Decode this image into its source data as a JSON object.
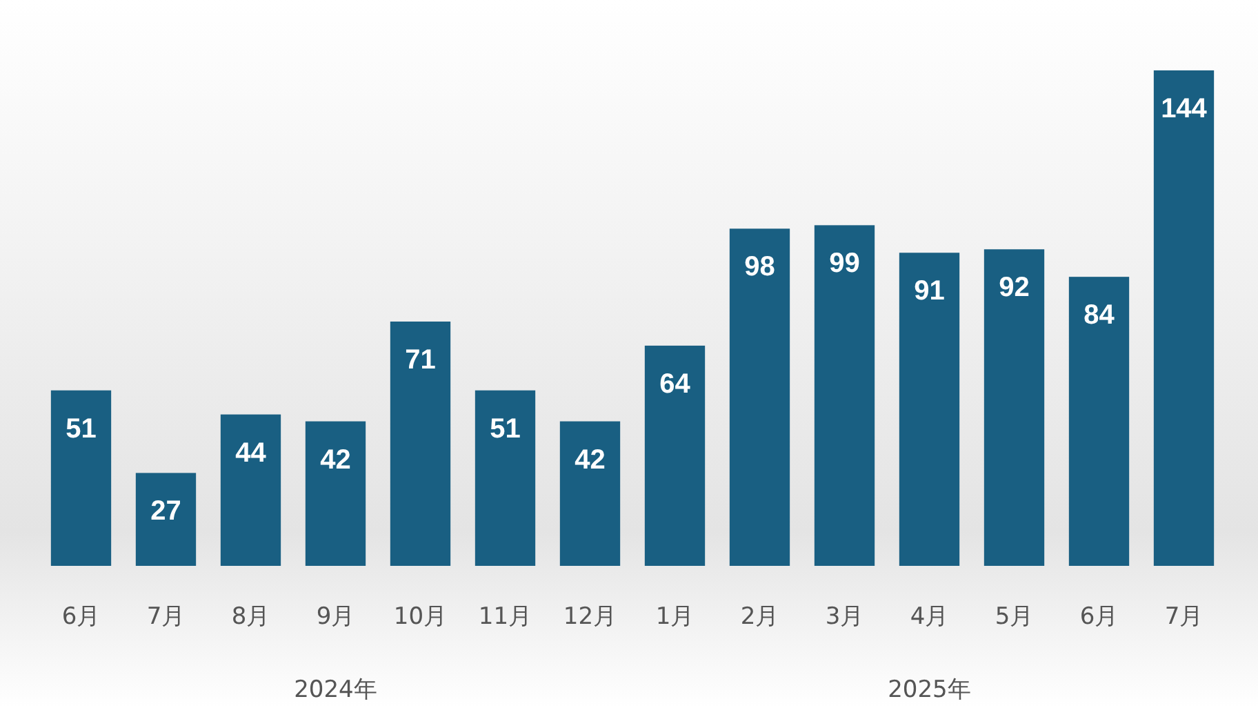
{
  "chart_data": {
    "type": "bar",
    "categories": [
      "6月",
      "7月",
      "8月",
      "9月",
      "10月",
      "11月",
      "12月",
      "1月",
      "2月",
      "3月",
      "4月",
      "5月",
      "6月",
      "7月"
    ],
    "values": [
      51,
      27,
      44,
      42,
      71,
      51,
      42,
      64,
      98,
      99,
      91,
      92,
      84,
      144
    ],
    "color": "#195f82",
    "data_labels": true,
    "annotations": [
      "2024年",
      "2025年"
    ]
  }
}
